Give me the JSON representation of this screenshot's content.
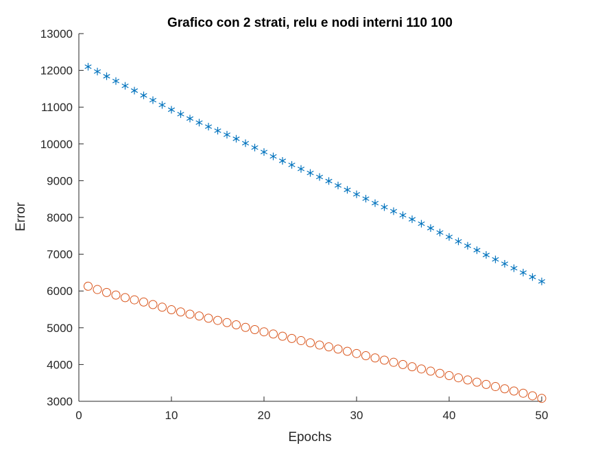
{
  "chart_data": {
    "type": "scatter",
    "title": "Grafico con 2 strati, relu e nodi interni 110  100",
    "xlabel": "Epochs",
    "ylabel": "Error",
    "xlim": [
      0,
      50
    ],
    "ylim": [
      3000,
      13000
    ],
    "xticks": [
      0,
      10,
      20,
      30,
      40,
      50
    ],
    "yticks": [
      3000,
      4000,
      5000,
      6000,
      7000,
      8000,
      9000,
      10000,
      11000,
      12000,
      13000
    ],
    "grid": false,
    "series": [
      {
        "marker": "asterisk",
        "color": "#0072BD",
        "x": [
          1,
          2,
          3,
          4,
          5,
          6,
          7,
          8,
          9,
          10,
          11,
          12,
          13,
          14,
          15,
          16,
          17,
          18,
          19,
          20,
          21,
          22,
          23,
          24,
          25,
          26,
          27,
          28,
          29,
          30,
          31,
          32,
          33,
          34,
          35,
          36,
          37,
          38,
          39,
          40,
          41,
          42,
          43,
          44,
          45,
          46,
          47,
          48,
          49,
          50
        ],
        "values": [
          12100,
          11970,
          11840,
          11710,
          11580,
          11450,
          11320,
          11190,
          11060,
          10930,
          10810,
          10690,
          10580,
          10470,
          10360,
          10250,
          10140,
          10020,
          9900,
          9780,
          9660,
          9540,
          9430,
          9320,
          9210,
          9100,
          8990,
          8870,
          8750,
          8630,
          8510,
          8390,
          8280,
          8170,
          8060,
          7950,
          7830,
          7710,
          7590,
          7470,
          7350,
          7230,
          7110,
          6980,
          6860,
          6740,
          6620,
          6500,
          6380,
          6260
        ]
      },
      {
        "marker": "circle",
        "color": "#D95319",
        "x": [
          1,
          2,
          3,
          4,
          5,
          6,
          7,
          8,
          9,
          10,
          11,
          12,
          13,
          14,
          15,
          16,
          17,
          18,
          19,
          20,
          21,
          22,
          23,
          24,
          25,
          26,
          27,
          28,
          29,
          30,
          31,
          32,
          33,
          34,
          35,
          36,
          37,
          38,
          39,
          40,
          41,
          42,
          43,
          44,
          45,
          46,
          47,
          48,
          49,
          50
        ],
        "values": [
          6130,
          6040,
          5960,
          5890,
          5820,
          5760,
          5700,
          5630,
          5560,
          5490,
          5430,
          5370,
          5320,
          5260,
          5200,
          5140,
          5080,
          5010,
          4950,
          4890,
          4830,
          4770,
          4710,
          4650,
          4590,
          4530,
          4480,
          4420,
          4360,
          4300,
          4240,
          4180,
          4120,
          4060,
          4000,
          3940,
          3880,
          3820,
          3760,
          3700,
          3640,
          3580,
          3520,
          3460,
          3400,
          3340,
          3280,
          3220,
          3150,
          3080
        ]
      }
    ]
  }
}
